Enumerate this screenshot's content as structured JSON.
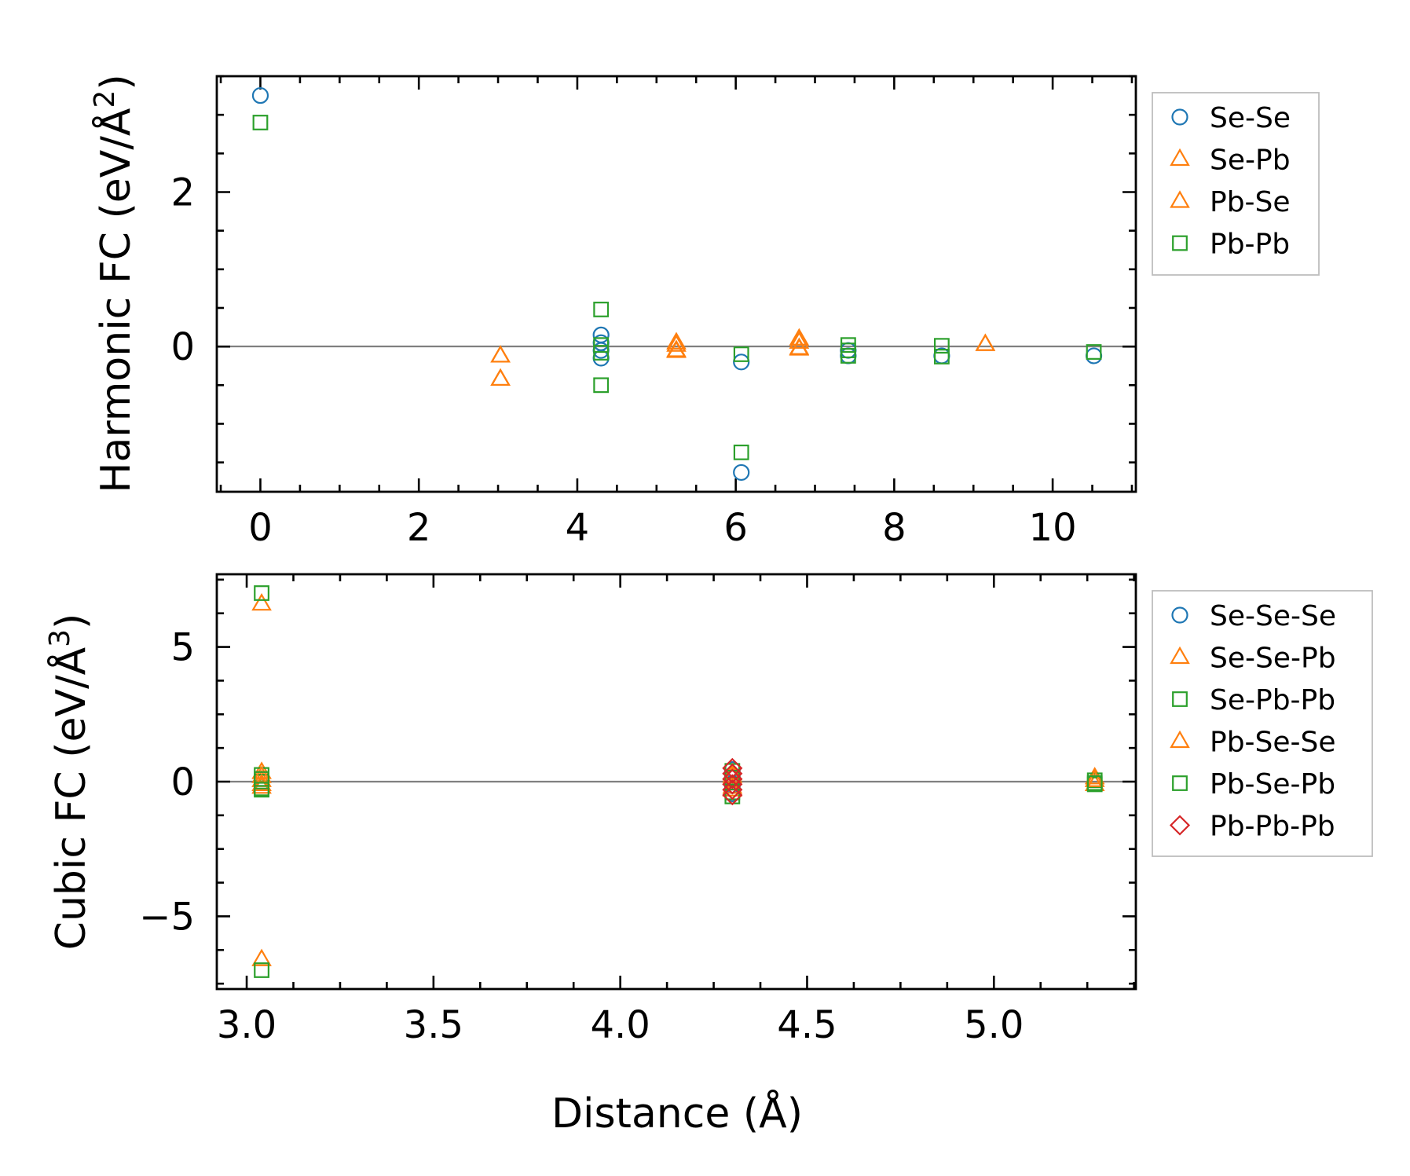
{
  "xlabel": "Distance (Å)",
  "colors": {
    "blue": "#1f77b4",
    "orange": "#ff7f0e",
    "green": "#2ca02c",
    "red": "#d62728"
  },
  "chart_data": [
    {
      "type": "scatter",
      "title": "",
      "ylabel_main": "Harmonic FC (eV/Å",
      "ylabel_sup": "2",
      "ylabel_close": ")",
      "xlim": [
        -0.55,
        11.05
      ],
      "ylim": [
        -1.88,
        3.5
      ],
      "xticks": [
        "0",
        "2",
        "4",
        "6",
        "8",
        "10"
      ],
      "xtick_values": [
        0,
        2,
        4,
        6,
        8,
        10
      ],
      "yticks": [
        "0",
        "2"
      ],
      "ytick_values": [
        0,
        2
      ],
      "legend": [
        "Se-Se",
        "Se-Pb",
        "Pb-Se",
        "Pb-Pb"
      ],
      "series": [
        {
          "name": "Se-Se",
          "marker": "circle",
          "color": "#1f77b4",
          "points": [
            [
              0,
              3.25
            ],
            [
              4.3,
              0.15
            ],
            [
              4.3,
              0.05
            ],
            [
              4.3,
              -0.05
            ],
            [
              4.3,
              -0.15
            ],
            [
              6.07,
              -0.2
            ],
            [
              6.07,
              -1.63
            ],
            [
              7.42,
              -0.05
            ],
            [
              7.42,
              -0.12
            ],
            [
              8.6,
              -0.12
            ],
            [
              10.52,
              -0.12
            ]
          ]
        },
        {
          "name": "Se-Pb",
          "marker": "triangle",
          "color": "#ff7f0e",
          "points": [
            [
              3.03,
              -0.12
            ],
            [
              3.03,
              -0.42
            ],
            [
              5.25,
              0.05
            ],
            [
              5.25,
              -0.05
            ],
            [
              6.8,
              0.1
            ],
            [
              6.8,
              -0.03
            ],
            [
              9.15,
              0.03
            ]
          ]
        },
        {
          "name": "Pb-Se",
          "marker": "triangle",
          "color": "#ff7f0e",
          "points": [
            [
              3.03,
              -0.12
            ],
            [
              3.03,
              -0.42
            ],
            [
              5.25,
              0.02
            ],
            [
              5.25,
              -0.06
            ],
            [
              6.8,
              0.06
            ],
            [
              6.8,
              -0.02
            ],
            [
              9.15,
              0.03
            ]
          ]
        },
        {
          "name": "Pb-Pb",
          "marker": "square",
          "color": "#2ca02c",
          "points": [
            [
              0,
              2.9
            ],
            [
              4.3,
              0.48
            ],
            [
              4.3,
              0.02
            ],
            [
              4.3,
              -0.08
            ],
            [
              4.3,
              -0.5
            ],
            [
              6.07,
              -0.1
            ],
            [
              6.07,
              -1.37
            ],
            [
              7.42,
              0.02
            ],
            [
              7.42,
              -0.05
            ],
            [
              7.42,
              -0.12
            ],
            [
              8.6,
              0.01
            ],
            [
              8.6,
              -0.13
            ],
            [
              10.52,
              -0.07
            ]
          ]
        }
      ]
    },
    {
      "type": "scatter",
      "title": "",
      "ylabel_main": "Cubic FC (eV/Å",
      "ylabel_sup": "3",
      "ylabel_close": ")",
      "xlim": [
        2.92,
        5.38
      ],
      "ylim": [
        -7.7,
        7.7
      ],
      "xticks": [
        "3.0",
        "3.5",
        "4.0",
        "4.5",
        "5.0"
      ],
      "xtick_values": [
        3.0,
        3.5,
        4.0,
        4.5,
        5.0
      ],
      "yticks": [
        "−5",
        "0",
        "5"
      ],
      "ytick_values": [
        -5,
        0,
        5
      ],
      "legend": [
        "Se-Se-Se",
        "Se-Se-Pb",
        "Se-Pb-Pb",
        "Pb-Se-Se",
        "Pb-Se-Pb",
        "Pb-Pb-Pb"
      ],
      "series": [
        {
          "name": "Se-Se-Se",
          "marker": "circle",
          "color": "#1f77b4",
          "points": [
            [
              4.3,
              0.45
            ],
            [
              4.3,
              0.15
            ],
            [
              4.3,
              -0.15
            ],
            [
              4.3,
              -0.45
            ]
          ]
        },
        {
          "name": "Se-Se-Pb",
          "marker": "triangle",
          "color": "#ff7f0e",
          "points": [
            [
              3.04,
              6.6
            ],
            [
              3.04,
              0.35
            ],
            [
              3.04,
              0.05
            ],
            [
              3.04,
              -0.2
            ],
            [
              3.04,
              -6.6
            ],
            [
              4.3,
              0.3
            ],
            [
              4.3,
              -0.3
            ],
            [
              5.27,
              0.15
            ],
            [
              5.27,
              -0.1
            ]
          ]
        },
        {
          "name": "Se-Pb-Pb",
          "marker": "square",
          "color": "#2ca02c",
          "points": [
            [
              3.04,
              7.0
            ],
            [
              3.04,
              0.25
            ],
            [
              3.04,
              0.0
            ],
            [
              3.04,
              -0.25
            ],
            [
              3.04,
              -7.0
            ],
            [
              4.3,
              0.4
            ],
            [
              4.3,
              -0.4
            ],
            [
              5.27,
              0.05
            ],
            [
              5.27,
              -0.1
            ]
          ]
        },
        {
          "name": "Pb-Se-Se",
          "marker": "triangle",
          "color": "#ff7f0e",
          "points": [
            [
              3.04,
              0.2
            ],
            [
              3.04,
              -0.1
            ],
            [
              4.3,
              0.2
            ],
            [
              4.3,
              -0.2
            ],
            [
              5.27,
              0.05
            ]
          ]
        },
        {
          "name": "Pb-Se-Pb",
          "marker": "square",
          "color": "#2ca02c",
          "points": [
            [
              3.04,
              0.1
            ],
            [
              3.04,
              -0.3
            ],
            [
              4.3,
              0.15
            ],
            [
              4.3,
              -0.55
            ],
            [
              5.27,
              -0.05
            ]
          ]
        },
        {
          "name": "Pb-Pb-Pb",
          "marker": "diamond",
          "color": "#d62728",
          "points": [
            [
              4.3,
              0.5
            ],
            [
              4.3,
              0.3
            ],
            [
              4.3,
              0.1
            ],
            [
              4.3,
              -0.1
            ],
            [
              4.3,
              -0.3
            ],
            [
              4.3,
              -0.5
            ]
          ]
        }
      ]
    }
  ]
}
